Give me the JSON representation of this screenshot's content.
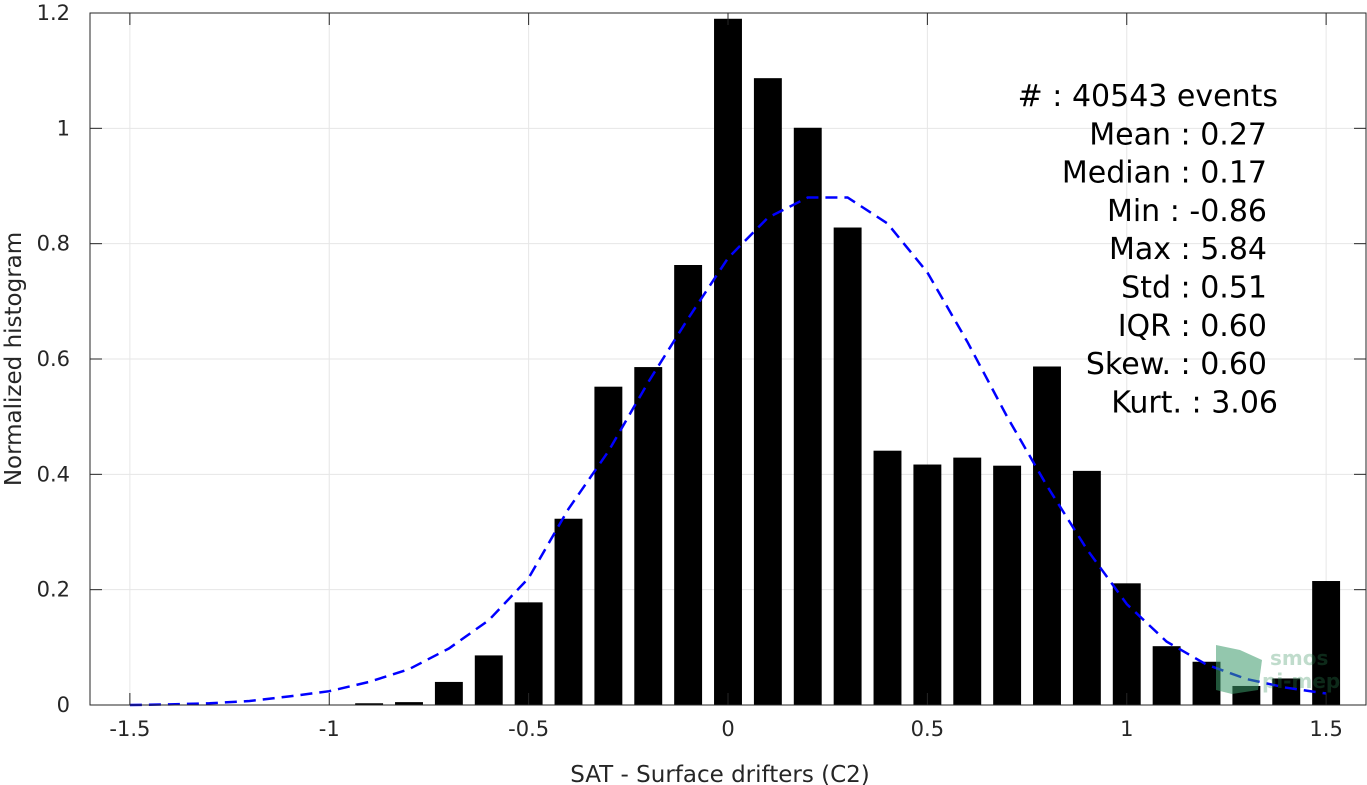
{
  "chart_data": {
    "type": "bar",
    "xlabel": "SAT - Surface drifters (C2)",
    "ylabel": "Normalized histogram",
    "xlim": [
      -1.6,
      1.6
    ],
    "ylim": [
      0,
      1.2
    ],
    "xticks": [
      -1.5,
      -1,
      -0.5,
      0,
      0.5,
      1,
      1.5
    ],
    "xtick_labels": [
      "-1.5",
      "-1",
      "-0.5",
      "0",
      "0.5",
      "1",
      "1.5"
    ],
    "yticks": [
      0,
      0.2,
      0.4,
      0.6,
      0.8,
      1,
      1.2
    ],
    "ytick_labels": [
      "0",
      "0.2",
      "0.4",
      "0.6",
      "0.8",
      "1",
      "1.2"
    ],
    "grid": true,
    "bar_width": 0.07,
    "bars": {
      "x": [
        -0.9,
        -0.8,
        -0.7,
        -0.6,
        -0.5,
        -0.4,
        -0.3,
        -0.2,
        -0.1,
        0.0,
        0.1,
        0.2,
        0.3,
        0.4,
        0.5,
        0.6,
        0.7,
        0.8,
        0.9,
        1.0,
        1.1,
        1.2,
        1.3,
        1.4,
        1.5
      ],
      "values": [
        0.003,
        0.005,
        0.04,
        0.086,
        0.178,
        0.323,
        0.552,
        0.586,
        0.763,
        1.19,
        1.087,
        1.001,
        0.828,
        0.441,
        0.417,
        0.429,
        0.415,
        0.587,
        0.406,
        0.211,
        0.102,
        0.075,
        0.033,
        0.046,
        0.215
      ],
      "color": "#000000"
    },
    "fit_curve": {
      "style": "dashed",
      "color": "#0000ff",
      "x": [
        -1.5,
        -1.4,
        -1.3,
        -1.2,
        -1.1,
        -1.0,
        -0.9,
        -0.8,
        -0.7,
        -0.6,
        -0.5,
        -0.4,
        -0.3,
        -0.2,
        -0.1,
        0.0,
        0.1,
        0.2,
        0.3,
        0.4,
        0.5,
        0.6,
        0.7,
        0.8,
        0.9,
        1.0,
        1.1,
        1.2,
        1.3,
        1.4,
        1.5
      ],
      "y": [
        0.0,
        0.001,
        0.003,
        0.007,
        0.015,
        0.024,
        0.04,
        0.062,
        0.098,
        0.147,
        0.22,
        0.34,
        0.44,
        0.56,
        0.67,
        0.775,
        0.845,
        0.88,
        0.88,
        0.835,
        0.75,
        0.63,
        0.5,
        0.38,
        0.27,
        0.175,
        0.11,
        0.07,
        0.045,
        0.03,
        0.02
      ]
    },
    "annotations": [
      "#  : 40543 events",
      "Mean : 0.27",
      "Median : 0.17",
      "Min : -0.86",
      "Max : 5.84",
      "Std : 0.51",
      "IQR : 0.60",
      "Skew. : 0.60",
      "Kurt. : 3.06"
    ]
  },
  "logo": {
    "line1": "smos",
    "line2": "pi-mep"
  },
  "colors": {
    "grid": "#e6e6e6",
    "axis": "#262626",
    "logo": "#2e8b57"
  }
}
